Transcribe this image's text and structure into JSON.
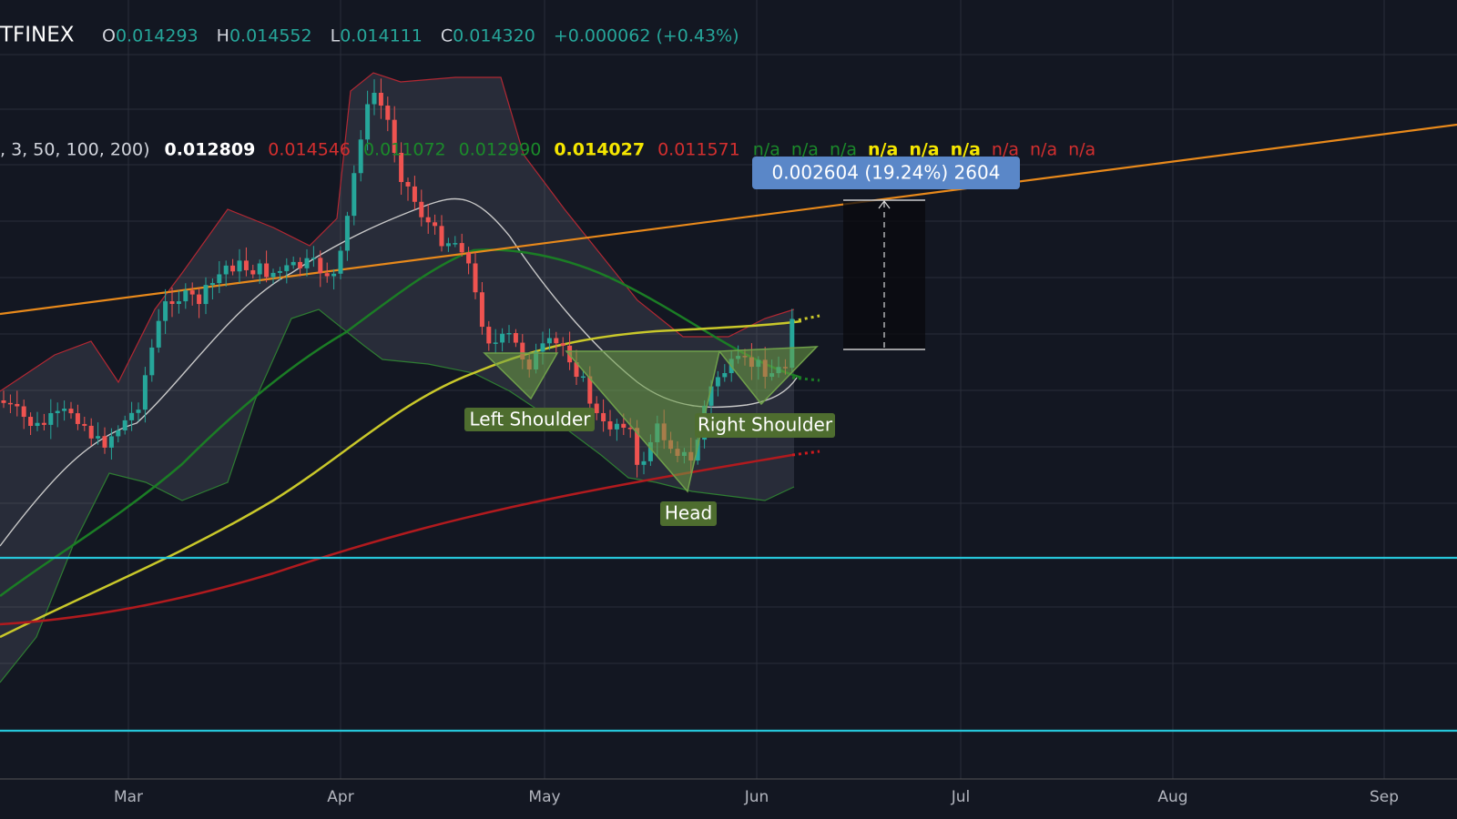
{
  "header": {
    "exchange": "TFINEX",
    "ohlc": [
      {
        "label": "O",
        "value": "0.014293"
      },
      {
        "label": "H",
        "value": "0.014552"
      },
      {
        "label": "L",
        "value": "0.014111"
      },
      {
        "label": "C",
        "value": "0.014320"
      }
    ],
    "change": "+0.000062 (+0.43%)"
  },
  "indicators": {
    "params": ", 3, 50, 100, 200)",
    "values": [
      "0.012809",
      "0.014546",
      "0.011072",
      "0.012990",
      "0.014027",
      "0.011571"
    ],
    "missing": [
      "n/a",
      "n/a",
      "n/a",
      "n/a",
      "n/a",
      "n/a",
      "n/a",
      "n/a",
      "n/a"
    ]
  },
  "measure": {
    "label": "0.002604 (19.24%) 2604"
  },
  "pattern": {
    "left_shoulder": "Left Shoulder",
    "head": "Head",
    "right_shoulder": "Right Shoulder"
  },
  "x_axis": {
    "labels": [
      "Mar",
      "Apr",
      "May",
      "Jun",
      "Jul",
      "Aug",
      "Sep"
    ]
  }
}
